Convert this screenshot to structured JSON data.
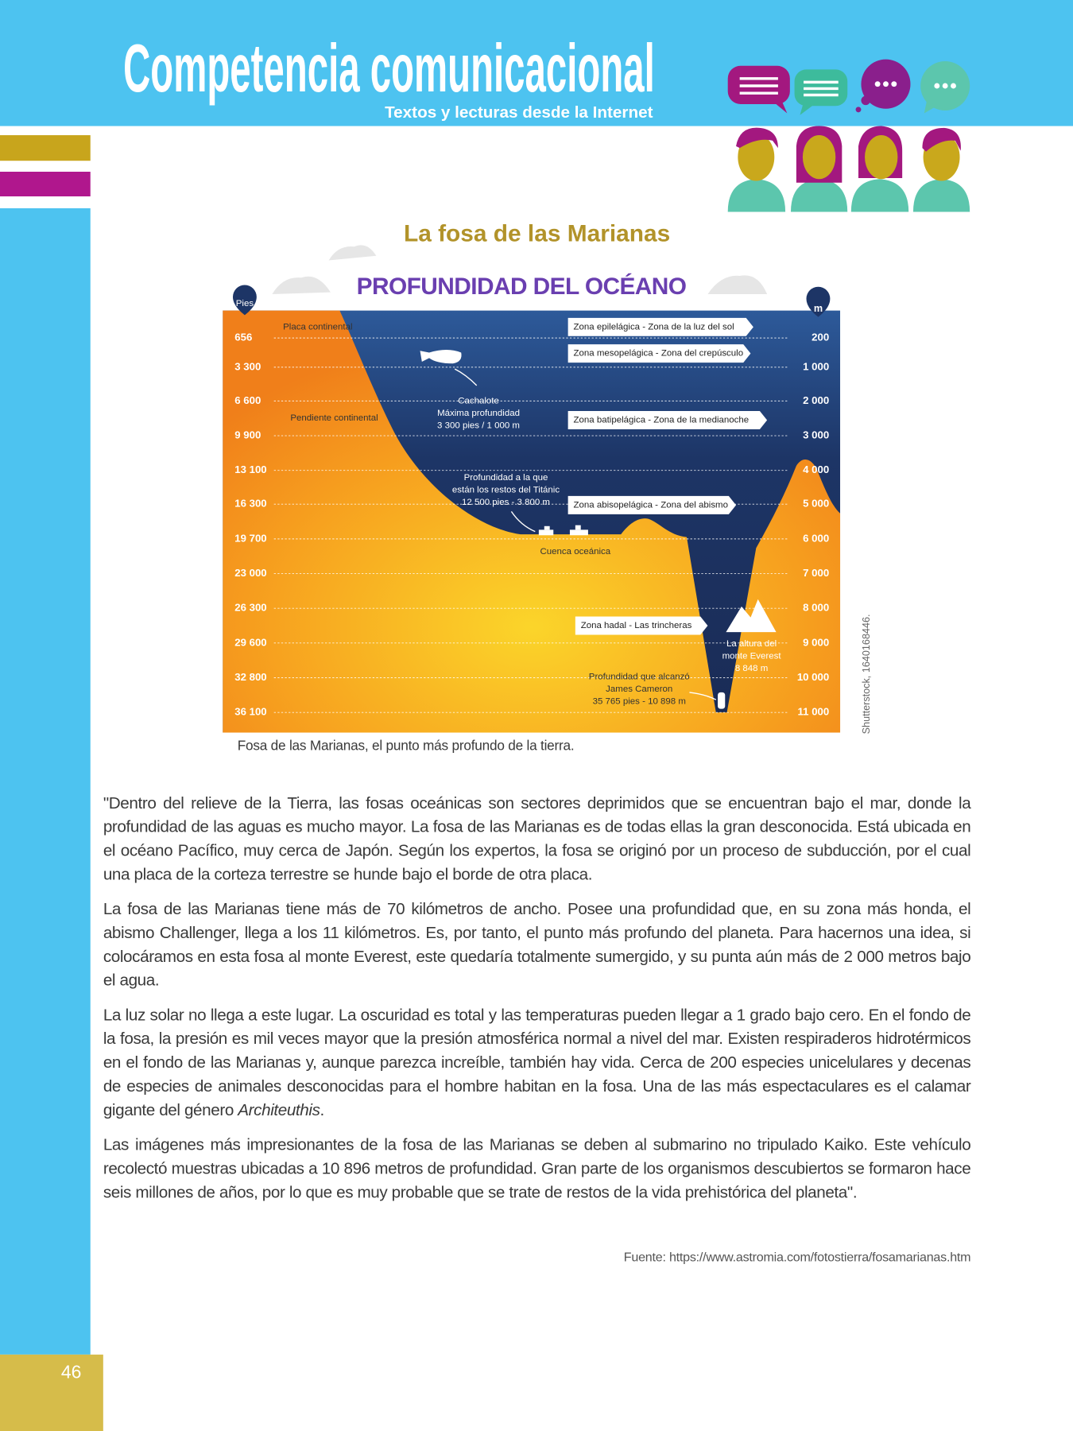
{
  "header": {
    "title": "Competencia comunicacional",
    "subtitle": "Textos y lecturas desde la Internet"
  },
  "infographic": {
    "title": "La fosa de las Marianas",
    "heading": "PROFUNDIDAD DEL OCÉANO",
    "left_unit": "Pies",
    "right_unit": "m",
    "feet_labels": [
      "656",
      "3 300",
      "6 600",
      "9 900",
      "13 100",
      "16 300",
      "19 700",
      "23 000",
      "26 300",
      "29 600",
      "32 800",
      "36 100"
    ],
    "meter_labels": [
      "200",
      "1 000",
      "2 000",
      "3 000",
      "4 000",
      "5 000",
      "6 000",
      "7 000",
      "8 000",
      "9 000",
      "10 000",
      "11 000"
    ],
    "zones": [
      "Zona epilelágica - Zona de la luz del sol",
      "Zona mesopelágica - Zona del crepúsculo",
      "Zona batipelágica - Zona de la medianoche",
      "Zona abisopelágica - Zona del abismo",
      "Zona hadal - Las trincheras"
    ],
    "continental_plate": "Placa continental",
    "continental_slope": "Pendiente continental",
    "ocean_basin": "Cuenca oceánica",
    "sperm_whale": [
      "Cachalote",
      "Máxima profundidad",
      "3 300 pies / 1 000 m"
    ],
    "titanic": [
      "Profundidad a la que",
      "están los restos del Titánic",
      "12 500 pies - 3 800 m"
    ],
    "everest": [
      "La altura del",
      "monte Everest",
      "8 848 m"
    ],
    "cameron": [
      "Profundidad que alcanzó",
      "James Cameron",
      "35 765 pies - 10 898 m"
    ],
    "credit": "Shutterstock, 1640168446."
  },
  "caption": "Fosa de las Marianas, el punto más profundo de la tierra.",
  "paragraphs": [
    {
      "text": "\"Dentro del relieve de la Tierra, las fosas oceánicas son sectores deprimidos que se encuentran bajo el mar, donde la profundidad de las aguas es mucho mayor. La fosa de las Marianas es de todas ellas la gran desconocida. Está ubicada en el océano Pacífico, muy cerca de Japón. Según los expertos, la fosa se originó por un proceso de subducción, por el cual una placa de la corteza terrestre se hunde bajo el borde de otra placa."
    },
    {
      "text": "La fosa de las Marianas tiene más de 70 kilómetros de ancho. Posee una profundidad que, en su zona más honda, el abismo Challenger, llega a los 11 kilómetros. Es, por tanto, el punto más profundo del planeta. Para hacernos una idea, si colocáramos en esta fosa al monte Everest, este quedaría totalmente sumergido, y su punta aún más de 2 000 metros bajo el agua."
    },
    {
      "text": "La luz solar no llega a este lugar. La oscuridad es total y las temperaturas pueden llegar a 1 grado bajo cero. En el fondo de la fosa, la presión es mil veces mayor que la presión atmosférica normal a nivel del mar. Existen respiraderos hidrotérmicos en el fondo de las Marianas y, aunque parezca increíble, también hay vida. Cerca de 200 especies unicelulares y decenas de especies de animales desconocidas para el hombre habitan en la fosa. Una de las más espectaculares es el calamar gigante del género ",
      "italic": "Architeuthis",
      "end": "."
    },
    {
      "text": "Las imágenes más impresionantes de la fosa de las Marianas se deben al submarino no tripulado Kaiko. Este vehículo recolectó muestras ubicadas a 10 896 metros de profundidad. Gran parte de los organismos descubiertos se formaron hace seis millones de años, por lo que es muy probable que se trate de restos de la vida prehistórica del planeta\"."
    }
  ],
  "source": "Fuente: https://www.astromia.com/fotostierra/fosamarianas.htm",
  "page_number": "46"
}
